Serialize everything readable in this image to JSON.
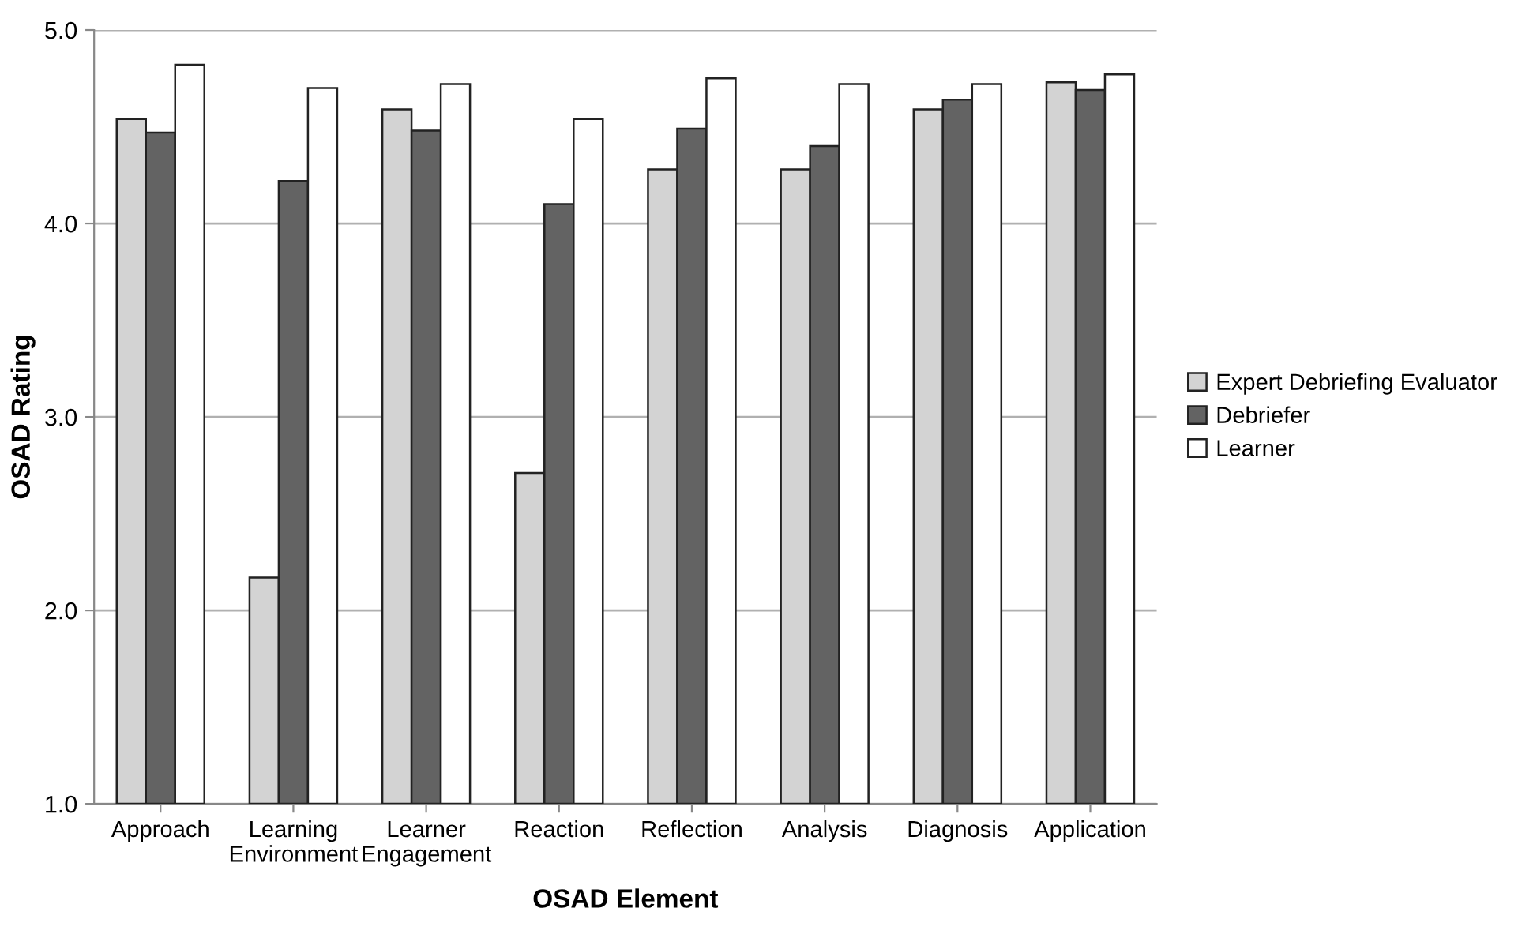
{
  "chart_data": {
    "type": "bar",
    "xlabel": "OSAD Element",
    "ylabel": "OSAD Rating",
    "categories": [
      "Approach",
      "Learning\nEnvironment",
      "Learner\nEngagement",
      "Reaction",
      "Reflection",
      "Analysis",
      "Diagnosis",
      "Application"
    ],
    "series": [
      {
        "name": "Expert Debriefing Evaluator",
        "color": "#d3d3d3",
        "values": [
          4.54,
          2.17,
          4.59,
          2.71,
          4.28,
          4.28,
          4.59,
          4.73
        ]
      },
      {
        "name": "Debriefer",
        "color": "#636363",
        "values": [
          4.47,
          4.22,
          4.48,
          4.1,
          4.49,
          4.4,
          4.64,
          4.69
        ]
      },
      {
        "name": "Learner",
        "color": "#ffffff",
        "values": [
          4.82,
          4.7,
          4.72,
          4.54,
          4.75,
          4.72,
          4.72,
          4.77
        ]
      }
    ],
    "ylim": [
      1,
      5
    ],
    "yticks": [
      {
        "value": 1,
        "label": "1.0"
      },
      {
        "value": 2,
        "label": "2.0"
      },
      {
        "value": 3,
        "label": "3.0"
      },
      {
        "value": 4,
        "label": "4.0"
      },
      {
        "value": 5,
        "label": "5.0"
      }
    ],
    "grid": "y",
    "legend": "right"
  }
}
